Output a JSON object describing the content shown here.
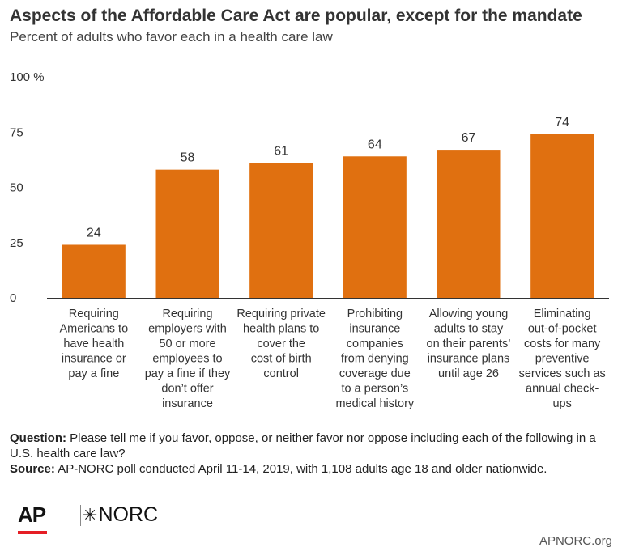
{
  "header": {
    "title": "Aspects of the Affordable Care Act are popular, except for the mandate",
    "subtitle": "Percent of adults who favor each in a health care law"
  },
  "chart_data": {
    "type": "bar",
    "title": "Aspects of the Affordable Care Act are popular, except for the mandate",
    "subtitle": "Percent of adults who favor each in a health care law",
    "categories": [
      "Requiring Americans to have health insurance or pay a fine",
      "Requiring employers with 50 or more employees to pay a fine if they don't offer insurance",
      "Requiring private health plans to cover the cost of birth control",
      "Prohibiting insurance companies from denying coverage due to a person's medical history",
      "Allowing young adults to stay on their parents' insurance plans until age 26",
      "Eliminating out-of-pocket costs for many preventive services such as annual check-ups"
    ],
    "category_lines": [
      [
        "Requiring",
        "Americans to",
        "have health",
        "insurance or",
        "pay a fine"
      ],
      [
        "Requiring",
        "employers with",
        "50 or more",
        "employees to",
        "pay a fine if they",
        "don’t offer",
        "insurance"
      ],
      [
        "Requiring private",
        "health plans to",
        "cover the",
        "cost of birth",
        "control"
      ],
      [
        "Prohibiting",
        "insurance",
        "companies",
        "from denying",
        "coverage due",
        "to a person’s",
        "medical history"
      ],
      [
        "Allowing young",
        "adults to stay",
        "on their parents’",
        "insurance plans",
        "until age 26"
      ],
      [
        "Eliminating",
        "out-of-pocket",
        "costs for many",
        "preventive",
        "services such as",
        "annual check-",
        "ups"
      ]
    ],
    "values": [
      24,
      58,
      61,
      64,
      67,
      74
    ],
    "value_labels": [
      "24",
      "58",
      "61",
      "64",
      "67",
      "74"
    ],
    "ylim": [
      0,
      100
    ],
    "yticks": [
      0,
      25,
      50,
      75,
      100
    ],
    "ytick_labels": [
      "0",
      "25",
      "50",
      "75",
      "100 %"
    ],
    "grid": false,
    "bar_color": "#e07010",
    "axis_color": "#333333"
  },
  "notes": {
    "question_label": "Question:",
    "question_text": "Please tell me if you favor, oppose, or neither favor nor oppose including each of the following in a U.S. health care law?",
    "source_label": "Source:",
    "source_text": "AP-NORC poll conducted April 11-14, 2019, with 1,108 adults age 18 and older nationwide."
  },
  "footer": {
    "ap_logo_text": "AP",
    "norc_logo_text": "NORC",
    "site": "APNORC.org",
    "ap_red": "#e51e25"
  }
}
